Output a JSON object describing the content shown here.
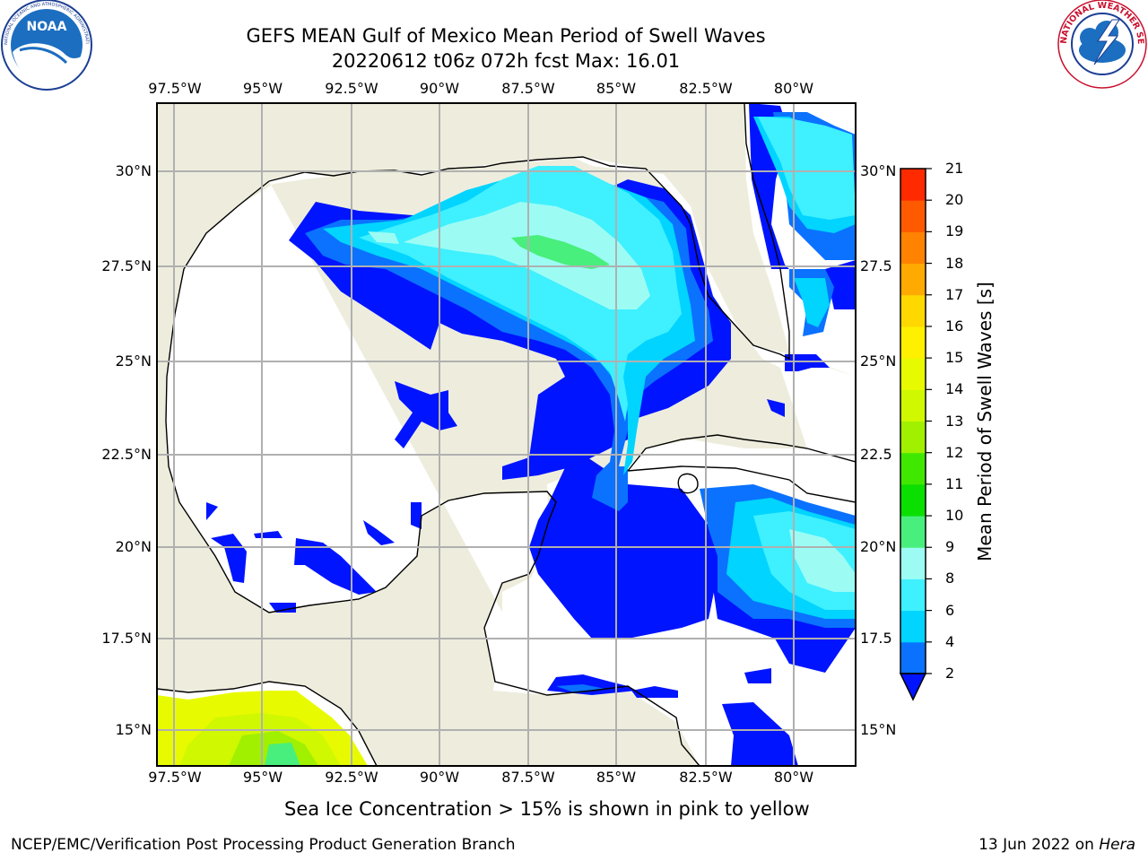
{
  "header": {
    "title_line1": "GEFS MEAN Gulf of Mexico Mean Period of Swell Waves",
    "title_line2": "20220612 t06z 072h fcst   Max: 16.01"
  },
  "logos": {
    "left": "NOAA",
    "left_ring": "NATIONAL OCEANIC AND ATMOSPHERIC ADMINISTRATION · U.S. DEPARTMENT OF COMMERCE",
    "right_ring": "NATIONAL WEATHER SERVICE"
  },
  "map": {
    "lon_ticks": [
      "97.5°W",
      "95°W",
      "92.5°W",
      "90°W",
      "87.5°W",
      "85°W",
      "82.5°W",
      "80°W"
    ],
    "lat_ticks_left": [
      "30°N",
      "27.5°N",
      "25°N",
      "22.5°N",
      "20°N",
      "17.5°N",
      "15°N"
    ],
    "lat_ticks_right": [
      "30°N",
      "27.5",
      "25°N",
      "22.5",
      "20°N",
      "17.5",
      "15°N"
    ],
    "colors": {
      "land": "#eeeddd",
      "grid": "#b0b0b0",
      "coast": "#000000"
    }
  },
  "colorbar": {
    "label": "Mean Period of Swell Waves [s]",
    "levels": [
      "2",
      "4",
      "6",
      "8",
      "9",
      "10",
      "11",
      "12",
      "13",
      "14",
      "15",
      "16",
      "17",
      "18",
      "19",
      "20",
      "21"
    ],
    "colors": [
      "#0a72ff",
      "#00d4ff",
      "#3ff0ff",
      "#9cfcf4",
      "#48ef7c",
      "#0adf00",
      "#40e800",
      "#a0f000",
      "#d0f800",
      "#e8fa00",
      "#fff000",
      "#ffd800",
      "#ffaa00",
      "#ff8200",
      "#ff5a00",
      "#ff2a00"
    ],
    "under_color": "#0014ff"
  },
  "notes": {
    "ice_note": "Sea Ice Concentration > 15% is shown in pink to yellow"
  },
  "footer": {
    "left": "NCEP/EMC/Verification Post Processing Product Generation Branch",
    "date": "13 Jun 2022 on ",
    "machine": "Hera"
  }
}
